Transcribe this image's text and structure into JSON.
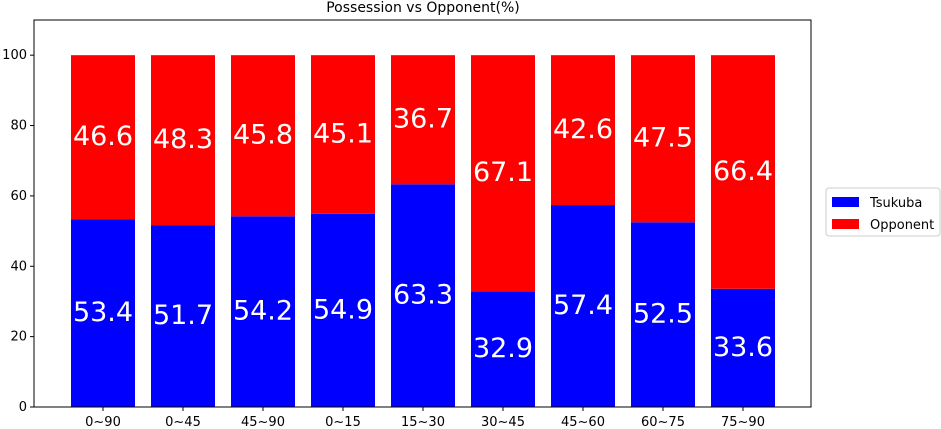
{
  "chart_data": {
    "type": "bar",
    "stacked": true,
    "title": "Possession vs Opponent(%)",
    "xlabel": "",
    "ylabel": "",
    "categories": [
      "0~90",
      "0~45",
      "45~90",
      "0~15",
      "15~30",
      "30~45",
      "45~60",
      "60~75",
      "75~90"
    ],
    "series": [
      {
        "name": "Tsukuba",
        "color": "#0000ff",
        "values": [
          53.4,
          51.7,
          54.2,
          54.9,
          63.3,
          32.9,
          57.4,
          52.5,
          33.6
        ]
      },
      {
        "name": "Opponent",
        "color": "#ff0000",
        "values": [
          46.6,
          48.3,
          45.8,
          45.1,
          36.7,
          67.1,
          42.6,
          47.5,
          66.4
        ]
      }
    ],
    "ylim": [
      0,
      110
    ],
    "yticks": [
      0,
      20,
      40,
      60,
      80,
      100
    ],
    "grid": false,
    "legend_position": "right"
  }
}
